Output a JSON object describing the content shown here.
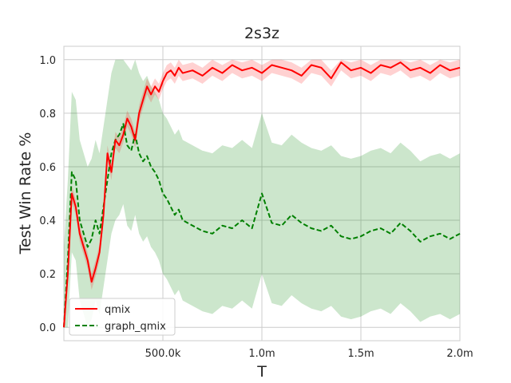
{
  "chart_data": {
    "type": "line",
    "title": "2s3z",
    "xlabel": "T",
    "ylabel": "Test Win Rate %",
    "xlim": [
      0,
      2000000
    ],
    "ylim": [
      -0.05,
      1.05
    ],
    "xticks": [
      500000,
      1000000,
      1500000,
      2000000
    ],
    "xtick_labels": [
      "500.0k",
      "1.0m",
      "1.5m",
      "2.0m"
    ],
    "yticks": [
      0.0,
      0.2,
      0.4,
      0.6,
      0.8,
      1.0
    ],
    "ytick_labels": [
      "0.0",
      "0.2",
      "0.4",
      "0.6",
      "0.8",
      "1.0"
    ],
    "grid": true,
    "legend_position": "lower-left",
    "series": [
      {
        "name": "qmix",
        "color": "#ff0000",
        "style": "solid",
        "x": [
          0,
          20000,
          40000,
          60000,
          80000,
          100000,
          120000,
          140000,
          160000,
          180000,
          200000,
          220000,
          240000,
          260000,
          280000,
          300000,
          320000,
          340000,
          360000,
          380000,
          400000,
          420000,
          440000,
          460000,
          480000,
          500000,
          520000,
          540000,
          560000,
          580000,
          600000,
          650000,
          700000,
          750000,
          800000,
          850000,
          900000,
          950000,
          1000000,
          1050000,
          1100000,
          1150000,
          1200000,
          1250000,
          1300000,
          1350000,
          1400000,
          1450000,
          1500000,
          1550000,
          1600000,
          1650000,
          1700000,
          1750000,
          1800000,
          1850000,
          1900000,
          1950000,
          2000000
        ],
        "y": [
          0.0,
          0.2,
          0.5,
          0.45,
          0.35,
          0.3,
          0.25,
          0.17,
          0.22,
          0.28,
          0.42,
          0.65,
          0.58,
          0.7,
          0.68,
          0.72,
          0.78,
          0.75,
          0.7,
          0.8,
          0.85,
          0.9,
          0.87,
          0.9,
          0.88,
          0.92,
          0.95,
          0.96,
          0.94,
          0.97,
          0.95,
          0.96,
          0.94,
          0.97,
          0.95,
          0.98,
          0.96,
          0.97,
          0.95,
          0.98,
          0.97,
          0.96,
          0.94,
          0.98,
          0.97,
          0.93,
          0.99,
          0.96,
          0.97,
          0.95,
          0.98,
          0.97,
          0.99,
          0.96,
          0.97,
          0.95,
          0.98,
          0.96,
          0.97
        ],
        "band": 0.03
      },
      {
        "name": "graph_qmix",
        "color": "#008000",
        "style": "dashed",
        "x": [
          0,
          20000,
          40000,
          60000,
          80000,
          100000,
          120000,
          140000,
          160000,
          180000,
          200000,
          220000,
          240000,
          260000,
          280000,
          300000,
          320000,
          340000,
          360000,
          380000,
          400000,
          420000,
          440000,
          460000,
          480000,
          500000,
          520000,
          540000,
          560000,
          580000,
          600000,
          650000,
          700000,
          750000,
          800000,
          850000,
          900000,
          950000,
          1000000,
          1050000,
          1100000,
          1150000,
          1200000,
          1250000,
          1300000,
          1350000,
          1400000,
          1450000,
          1500000,
          1550000,
          1600000,
          1650000,
          1700000,
          1750000,
          1800000,
          1850000,
          1900000,
          1950000,
          2000000
        ],
        "y": [
          0.0,
          0.25,
          0.58,
          0.55,
          0.4,
          0.35,
          0.3,
          0.33,
          0.4,
          0.35,
          0.45,
          0.55,
          0.65,
          0.7,
          0.72,
          0.76,
          0.68,
          0.66,
          0.72,
          0.65,
          0.62,
          0.64,
          0.6,
          0.58,
          0.55,
          0.5,
          0.48,
          0.45,
          0.42,
          0.44,
          0.4,
          0.38,
          0.36,
          0.35,
          0.38,
          0.37,
          0.4,
          0.37,
          0.5,
          0.39,
          0.38,
          0.42,
          0.39,
          0.37,
          0.36,
          0.38,
          0.34,
          0.33,
          0.34,
          0.36,
          0.37,
          0.35,
          0.39,
          0.36,
          0.32,
          0.34,
          0.35,
          0.33,
          0.35
        ],
        "band": 0.3
      }
    ]
  }
}
